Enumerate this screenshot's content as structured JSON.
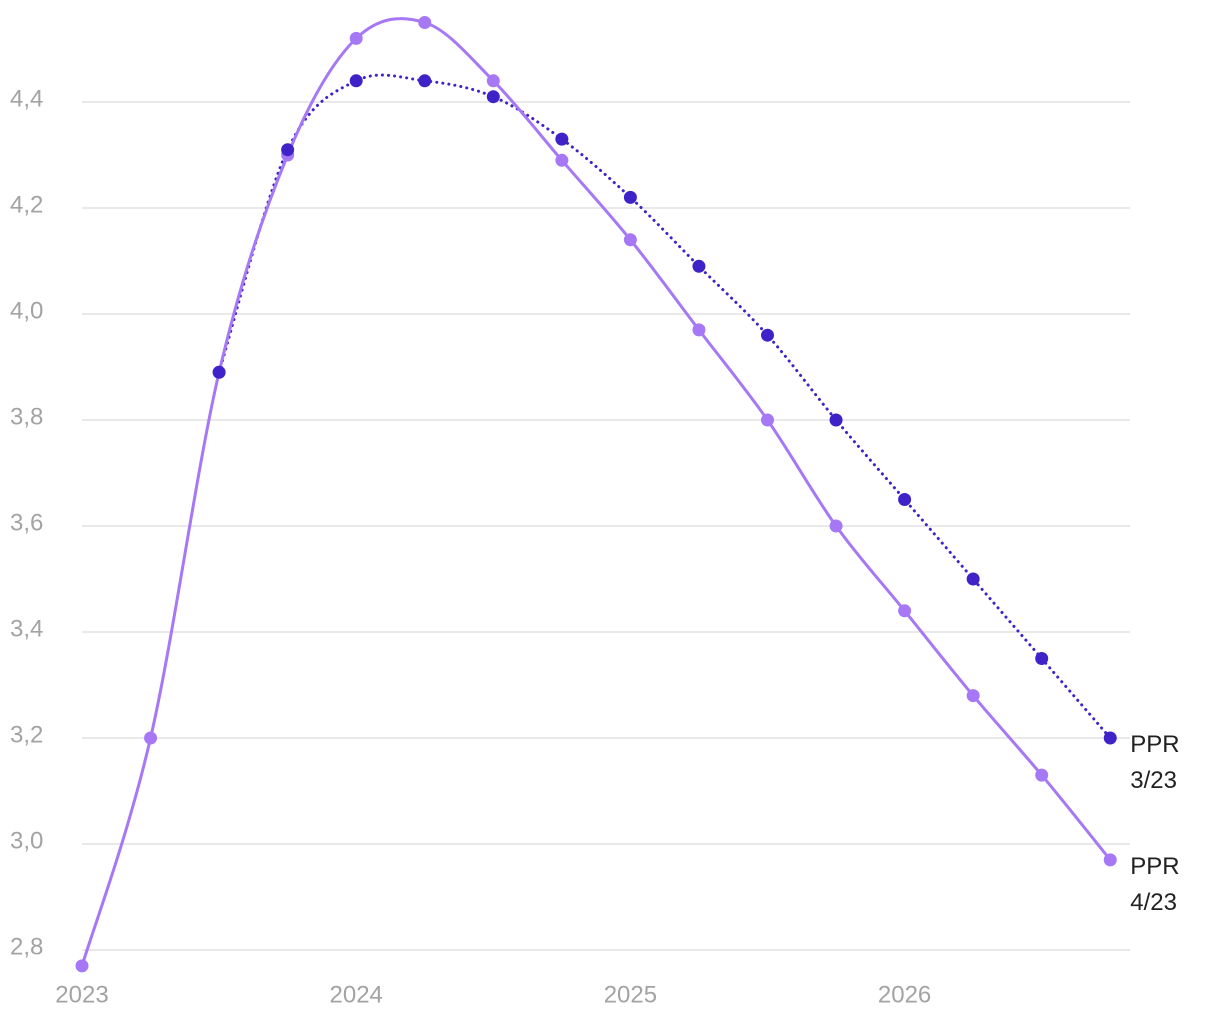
{
  "chart_data": {
    "type": "line",
    "categories": [
      "2023",
      null,
      null,
      null,
      "2024",
      null,
      null,
      null,
      "2025",
      null,
      null,
      null,
      "2026",
      null,
      null,
      null
    ],
    "series": [
      {
        "name": "PPR 4/23",
        "color": "#a678f5",
        "dash": false,
        "values": [
          2.77,
          3.2,
          3.89,
          4.3,
          4.52,
          4.55,
          4.44,
          4.29,
          4.14,
          3.97,
          3.8,
          3.6,
          3.44,
          3.28,
          3.13,
          2.97
        ]
      },
      {
        "name": "PPR 3/23",
        "color": "#3f23c8",
        "dash": true,
        "values": [
          null,
          null,
          3.89,
          4.31,
          4.44,
          4.44,
          4.41,
          4.33,
          4.22,
          4.09,
          3.96,
          3.8,
          3.65,
          3.5,
          3.35,
          3.2
        ]
      }
    ],
    "ylim": [
      2.75,
      4.58
    ],
    "yticks": [
      {
        "value": 2.8,
        "label": "2,8"
      },
      {
        "value": 3.0,
        "label": "3,0"
      },
      {
        "value": 3.2,
        "label": "3,2"
      },
      {
        "value": 3.4,
        "label": "3,4"
      },
      {
        "value": 3.6,
        "label": "3,6"
      },
      {
        "value": 3.8,
        "label": "3,8"
      },
      {
        "value": 4.0,
        "label": "4,0"
      },
      {
        "value": 4.2,
        "label": "4,2"
      },
      {
        "value": 4.4,
        "label": "4,4"
      }
    ],
    "grid": true
  }
}
